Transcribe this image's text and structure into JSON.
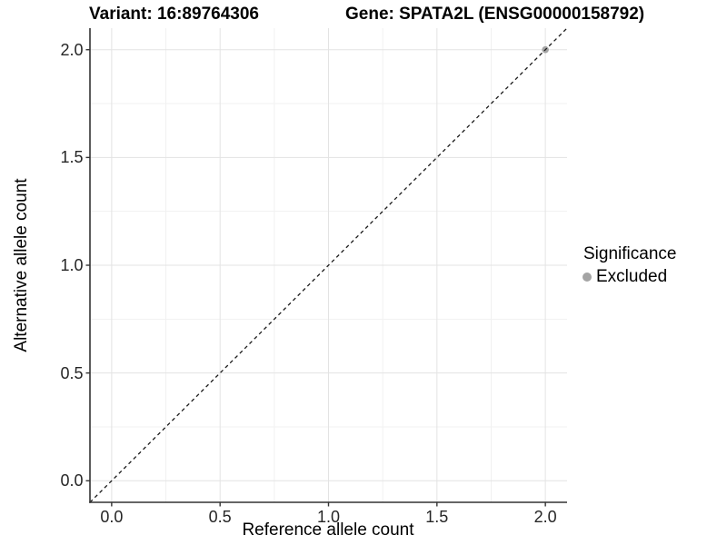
{
  "chart_data": {
    "type": "scatter",
    "titles": {
      "variant": "Variant: 16:89764306",
      "gene": "Gene: SPATA2L (ENSG00000158792)"
    },
    "xlabel": "Reference allele count",
    "ylabel": "Alternative allele count",
    "xlim": [
      -0.1,
      2.1
    ],
    "ylim": [
      -0.1,
      2.1
    ],
    "x_tick_values": [
      0.0,
      0.5,
      1.0,
      1.5,
      2.0
    ],
    "x_tick_labels": [
      "0.0",
      "0.5",
      "1.0",
      "1.5",
      "2.0"
    ],
    "y_tick_values": [
      0.0,
      0.5,
      1.0,
      1.5,
      2.0
    ],
    "y_tick_labels": [
      "0.0",
      "0.5",
      "1.0",
      "1.5",
      "2.0"
    ],
    "x_minor_ticks": [
      0.25,
      0.75,
      1.25,
      1.75
    ],
    "y_minor_ticks": [
      0.25,
      0.75,
      1.25,
      1.75
    ],
    "grid": "major-and-minor",
    "points": [
      {
        "x": 2.0,
        "y": 2.0,
        "significance": "Excluded"
      }
    ],
    "identity_line": {
      "equation": "y = x",
      "style": "dashed"
    },
    "legend": {
      "title": "Significance",
      "position": "right",
      "entries": [
        {
          "label": "Excluded",
          "color": "#a4a4a4"
        }
      ]
    }
  },
  "colors": {
    "background": "#ffffff",
    "point": "#a4a4a4",
    "grid_major": "#e3e3e3",
    "grid_minor": "#f1f1f1",
    "axis_line": "#333333",
    "tick_mark": "#333333",
    "identity_line": "#1a1a1a",
    "title_text": "#000000",
    "tick_label_text": "#262626"
  }
}
